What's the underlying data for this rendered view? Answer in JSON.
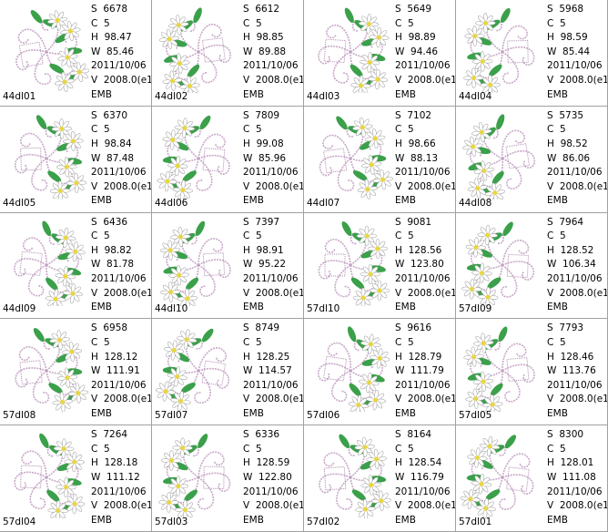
{
  "items": [
    {
      "name": "44dl01",
      "lines": [
        "S  6678",
        "C  5",
        "H  98.47",
        "W  85.46",
        "2011/10/06",
        "V  2008.0(e1",
        "EMB"
      ]
    },
    {
      "name": "44dl02",
      "lines": [
        "S  6612",
        "C  5",
        "H  98.85",
        "W  89.88",
        "2011/10/06",
        "V  2008.0(e1",
        "EMB"
      ]
    },
    {
      "name": "44dl03",
      "lines": [
        "S  5649",
        "C  5",
        "H  98.89",
        "W  94.46",
        "2011/10/06",
        "V  2008.0(e1",
        "EMB"
      ]
    },
    {
      "name": "44dl04",
      "lines": [
        "S  5968",
        "C  5",
        "H  98.59",
        "W  85.44",
        "2011/10/06",
        "V  2008.0(e1",
        "EMB"
      ]
    },
    {
      "name": "44dl05",
      "lines": [
        "S  6370",
        "C  5",
        "H  98.84",
        "W  87.48",
        "2011/10/06",
        "V  2008.0(e1",
        "EMB"
      ]
    },
    {
      "name": "44dl06",
      "lines": [
        "S  7809",
        "C  5",
        "H  99.08",
        "W  85.96",
        "2011/10/06",
        "V  2008.0(e1",
        "EMB"
      ]
    },
    {
      "name": "44dl07",
      "lines": [
        "S  7102",
        "C  5",
        "H  98.66",
        "W  88.13",
        "2011/10/06",
        "V  2008.0(e1",
        "EMB"
      ]
    },
    {
      "name": "44dl08",
      "lines": [
        "S  5735",
        "C  5",
        "H  98.52",
        "W  86.06",
        "2011/10/06",
        "V  2008.0(e1",
        "EMB"
      ]
    },
    {
      "name": "44dl09",
      "lines": [
        "S  6436",
        "C  5",
        "H  98.82",
        "W  81.78",
        "2011/10/06",
        "V  2008.0(e1",
        "EMB"
      ]
    },
    {
      "name": "44dl10",
      "lines": [
        "S  7397",
        "C  5",
        "H  98.91",
        "W  95.22",
        "2011/10/06",
        "V  2008.0(e1",
        "EMB"
      ]
    },
    {
      "name": "57dl10",
      "lines": [
        "S  9081",
        "C  5",
        "H  128.56",
        "W  123.80",
        "2011/10/06",
        "V  2008.0(e1",
        "EMB"
      ]
    },
    {
      "name": "57dl09",
      "lines": [
        "S  7964",
        "C  5",
        "H  128.52",
        "W  106.34",
        "2011/10/06",
        "V  2008.0(e1",
        "EMB"
      ]
    },
    {
      "name": "57dl08",
      "lines": [
        "S  6958",
        "C  5",
        "H  128.12",
        "W  111.91",
        "2011/10/06",
        "V  2008.0(e1",
        "EMB"
      ]
    },
    {
      "name": "57dl07",
      "lines": [
        "S  8749",
        "C  5",
        "H  128.25",
        "W  114.57",
        "2011/10/06",
        "V  2008.0(e1",
        "EMB"
      ]
    },
    {
      "name": "57dl06",
      "lines": [
        "S  9616",
        "C  5",
        "H  128.79",
        "W  111.79",
        "2011/10/06",
        "V  2008.0(e1",
        "EMB"
      ]
    },
    {
      "name": "57dl05",
      "lines": [
        "S  7793",
        "C  5",
        "H  128.46",
        "W  113.76",
        "2011/10/06",
        "V  2008.0(e1",
        "EMB"
      ]
    },
    {
      "name": "57dl04",
      "lines": [
        "S  7264",
        "C  5",
        "H  128.18",
        "W  111.12",
        "2011/10/06",
        "V  2008.0(e1",
        "EMB"
      ]
    },
    {
      "name": "57dl03",
      "lines": [
        "S  6336",
        "C  5",
        "H  128.59",
        "W  122.80",
        "2011/10/06",
        "V  2008.0(e1",
        "EMB"
      ]
    },
    {
      "name": "57dl02",
      "lines": [
        "S  8164",
        "C  5",
        "H  128.54",
        "W  116.79",
        "2011/10/06",
        "V  2008.0(e1",
        "EMB"
      ]
    },
    {
      "name": "57dl01",
      "lines": [
        "S  8300",
        "C  5",
        "H  128.01",
        "W  111.08",
        "2011/10/06",
        "V  2008.0(e1",
        "EMB"
      ]
    }
  ]
}
